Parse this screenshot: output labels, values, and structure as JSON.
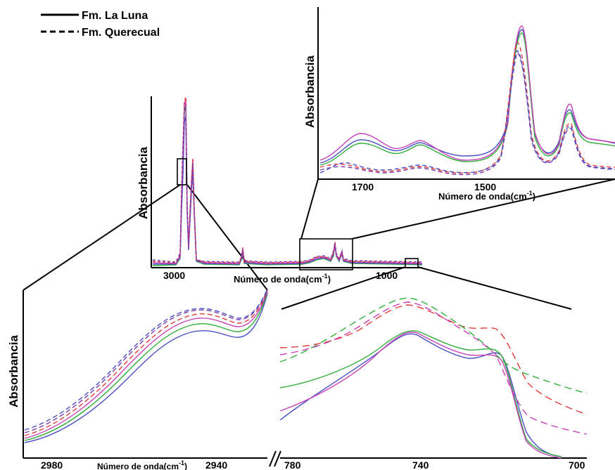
{
  "legend": [
    {
      "label": "Fm. La Luna",
      "style": "solid"
    },
    {
      "label": "Fm. Querecual",
      "style": "dashed"
    }
  ],
  "colors": {
    "blue": "#4a4fc4",
    "green": "#2fae3a",
    "red": "#e23a3a",
    "magenta": "#c640b8",
    "purple": "#7a3aa8",
    "axis": "#000000"
  },
  "chart_data": [
    {
      "id": "main",
      "type": "line",
      "ylabel": "Absorbancia",
      "xlabel": "Número de onda(cm",
      "xlabel_sup": "-1",
      "xlabel_close": ")",
      "xticks": [
        "3000",
        "1000"
      ],
      "xlim": [
        3400,
        650
      ],
      "x_reversed": true,
      "peaks_cm1": [
        2925,
        2855,
        1460,
        1377,
        725
      ],
      "series": [
        {
          "label": "Fm. La Luna",
          "style": "solid",
          "color": "green"
        },
        {
          "label": "Fm. La Luna",
          "style": "solid",
          "color": "blue"
        },
        {
          "label": "Fm. La Luna",
          "style": "solid",
          "color": "magenta"
        },
        {
          "label": "Fm. Querecual",
          "style": "dashed",
          "color": "red"
        },
        {
          "label": "Fm. Querecual",
          "style": "dashed",
          "color": "purple"
        }
      ]
    },
    {
      "id": "inset-fingerprint",
      "type": "line",
      "ylabel": "Absorbancia",
      "xlabel": "Número de onda(cm",
      "xlabel_sup": "-1",
      "xlabel_close": ")",
      "xticks": [
        "1700",
        "1500"
      ],
      "xlim": [
        1760,
        1350
      ],
      "x_reversed": true,
      "peaks_cm1": [
        1460,
        1377
      ],
      "series": [
        {
          "label": "Fm. La Luna",
          "style": "solid",
          "color": "blue"
        },
        {
          "label": "Fm. La Luna",
          "style": "solid",
          "color": "green"
        },
        {
          "label": "Fm. La Luna",
          "style": "solid",
          "color": "magenta"
        },
        {
          "label": "Fm. Querecual",
          "style": "dashed",
          "color": "red"
        },
        {
          "label": "Fm. Querecual",
          "style": "dashed",
          "color": "purple"
        },
        {
          "label": "Fm. Querecual",
          "style": "dashed",
          "color": "blue"
        }
      ]
    },
    {
      "id": "inset-ch-stretch",
      "type": "line",
      "ylabel": "Absorbancia",
      "xlabel": "Número de onda(cm",
      "xlabel_sup": "-1",
      "xlabel_close": ")",
      "xticks": [
        "2980",
        "2940"
      ],
      "xlim": [
        2990,
        2930
      ],
      "x_reversed": true,
      "series": [
        {
          "label": "Fm. La Luna",
          "style": "solid",
          "color": "blue"
        },
        {
          "label": "Fm. La Luna",
          "style": "solid",
          "color": "green"
        },
        {
          "label": "Fm. La Luna",
          "style": "solid",
          "color": "magenta"
        },
        {
          "label": "Fm. Querecual",
          "style": "dashed",
          "color": "red"
        },
        {
          "label": "Fm. Querecual",
          "style": "dashed",
          "color": "purple"
        },
        {
          "label": "Fm. Querecual",
          "style": "dashed",
          "color": "blue"
        }
      ]
    },
    {
      "id": "inset-rocking",
      "type": "line",
      "xticks": [
        "780",
        "740",
        "700"
      ],
      "xlim": [
        785,
        695
      ],
      "x_reversed": true,
      "peaks_cm1": [
        745,
        720
      ],
      "series": [
        {
          "label": "Fm. La Luna",
          "style": "solid",
          "color": "blue"
        },
        {
          "label": "Fm. La Luna",
          "style": "solid",
          "color": "green"
        },
        {
          "label": "Fm. La Luna",
          "style": "solid",
          "color": "magenta"
        },
        {
          "label": "Fm. Querecual",
          "style": "dashed",
          "color": "red"
        },
        {
          "label": "Fm. Querecual",
          "style": "dashed",
          "color": "green"
        },
        {
          "label": "Fm. Querecual",
          "style": "dashed",
          "color": "magenta"
        }
      ]
    }
  ]
}
